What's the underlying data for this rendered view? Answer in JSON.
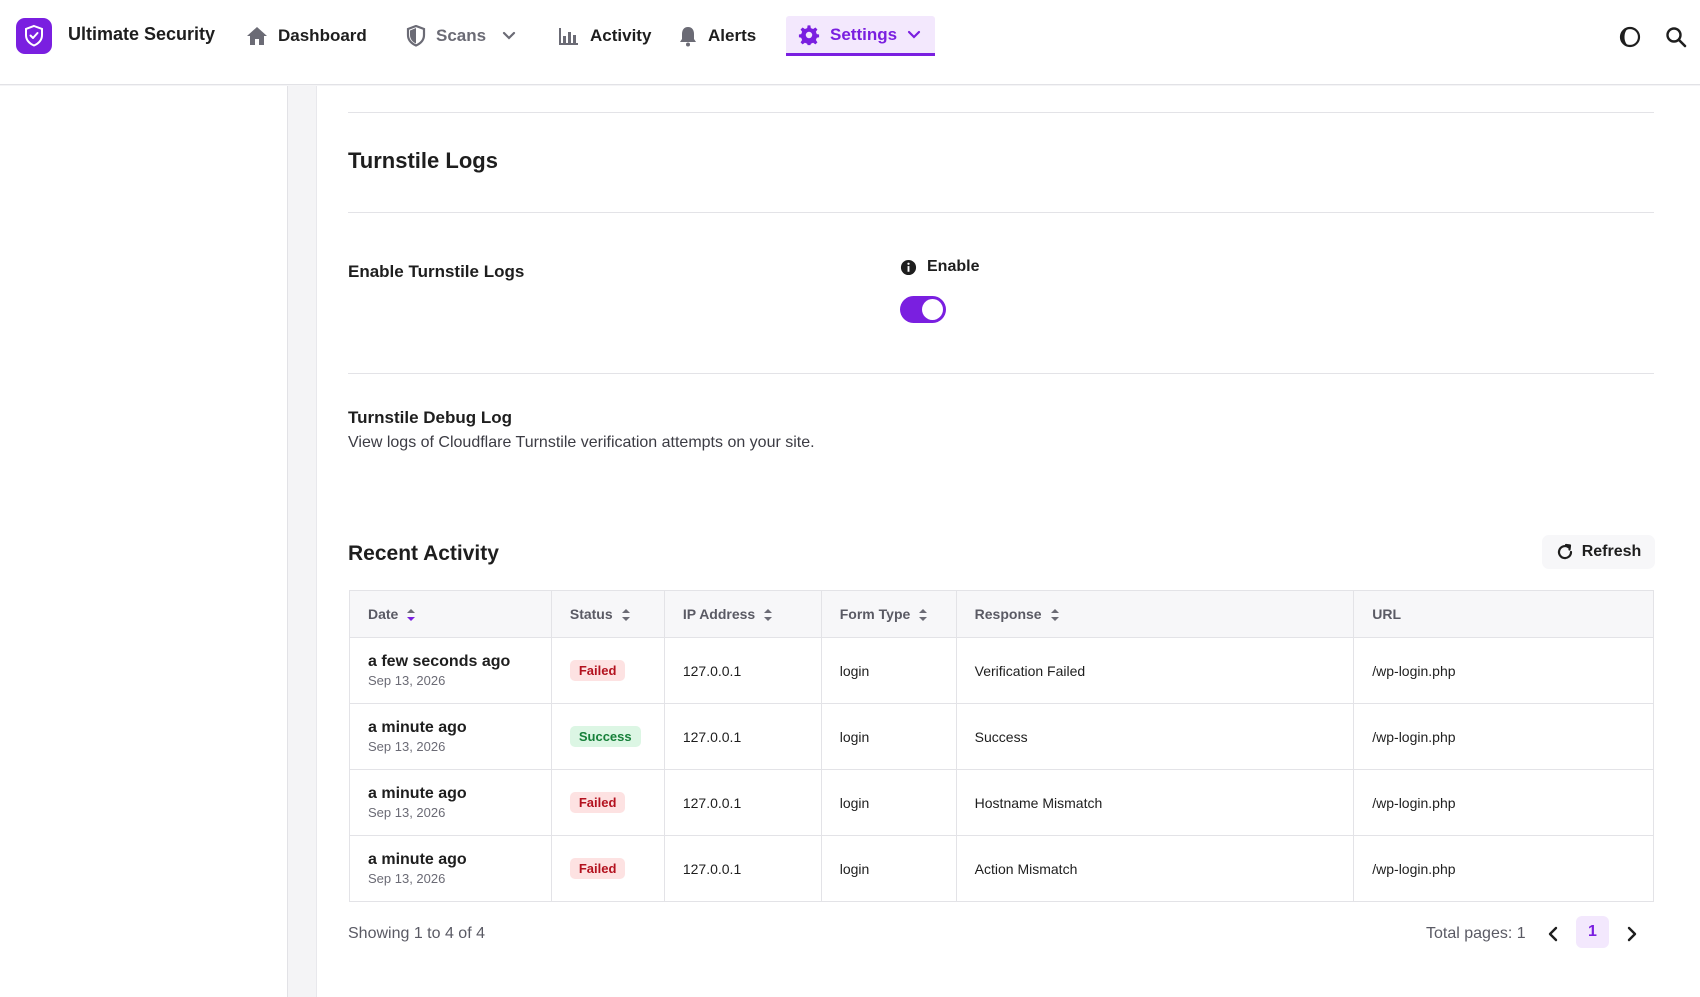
{
  "app": {
    "brand": "Ultimate Security",
    "accent": "#7a1fe0"
  },
  "nav": {
    "dashboard": "Dashboard",
    "scans": "Scans",
    "activity": "Activity",
    "alerts": "Alerts",
    "settings": "Settings"
  },
  "section": {
    "title": "Turnstile Logs",
    "enable_label": "Enable Turnstile Logs",
    "enable_toggle_label": "Enable",
    "enable_toggle_on": true,
    "debug_title": "Turnstile Debug Log",
    "debug_desc": "View logs of Cloudflare Turnstile verification attempts on your site."
  },
  "activity": {
    "title": "Recent Activity",
    "refresh_label": "Refresh",
    "columns": [
      "Date",
      "Status",
      "IP Address",
      "Form Type",
      "Response",
      "URL"
    ],
    "rows": [
      {
        "date_rel": "a few seconds ago",
        "date_abs": "Sep 13, 2026",
        "status": "Failed",
        "ip": "127.0.0.1",
        "form": "login",
        "response": "Verification Failed",
        "url": "/wp-login.php"
      },
      {
        "date_rel": "a minute ago",
        "date_abs": "Sep 13, 2026",
        "status": "Success",
        "ip": "127.0.0.1",
        "form": "login",
        "response": "Success",
        "url": "/wp-login.php"
      },
      {
        "date_rel": "a minute ago",
        "date_abs": "Sep 13, 2026",
        "status": "Failed",
        "ip": "127.0.0.1",
        "form": "login",
        "response": "Hostname Mismatch",
        "url": "/wp-login.php"
      },
      {
        "date_rel": "a minute ago",
        "date_abs": "Sep 13, 2026",
        "status": "Failed",
        "ip": "127.0.0.1",
        "form": "login",
        "response": "Action Mismatch",
        "url": "/wp-login.php"
      }
    ],
    "showing": "Showing 1 to 4 of 4",
    "total_pages": "Total pages: 1",
    "current_page": "1"
  }
}
